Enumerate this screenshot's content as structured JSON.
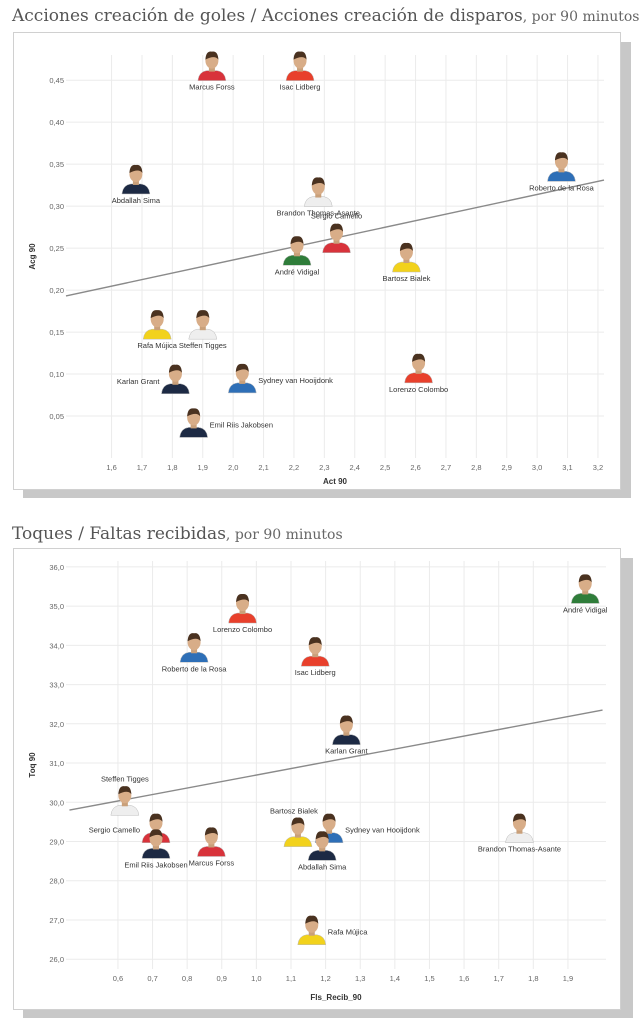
{
  "charts": [
    {
      "title": "Acciones creación de goles / Acciones creación de disparos",
      "subtitle": ", por 90 minutos"
    },
    {
      "title": "Toques / Faltas recibidas",
      "subtitle": ", por 90 minutos"
    }
  ],
  "chart_data": [
    {
      "type": "scatter",
      "xlabel": "Act 90",
      "ylabel": "Acg 90",
      "xlim": [
        1.45,
        3.22
      ],
      "ylim": [
        0.0,
        0.48
      ],
      "xticks": [
        "1,6",
        "1,7",
        "1,8",
        "1,9",
        "2,0",
        "2,1",
        "2,2",
        "2,3",
        "2,4",
        "2,5",
        "2,6",
        "2,7",
        "2,8",
        "2,9",
        "3,0",
        "3,1",
        "3,2"
      ],
      "yticks": [
        "0,05",
        "0,10",
        "0,15",
        "0,20",
        "0,25",
        "0,30",
        "0,35",
        "0,40",
        "0,45"
      ],
      "grid": true,
      "trendline": {
        "x": [
          1.45,
          3.22
        ],
        "y": [
          0.193,
          0.331
        ]
      },
      "points": [
        {
          "name": "Marcus Forss",
          "x": 1.93,
          "y": 0.465,
          "label_pos": "below",
          "jersey": "#d8333b"
        },
        {
          "name": "Isac Lidberg",
          "x": 2.22,
          "y": 0.465,
          "label_pos": "below",
          "jersey": "#e8402c"
        },
        {
          "name": "Abdallah Sima",
          "x": 1.68,
          "y": 0.33,
          "label_pos": "below",
          "jersey": "#1d2a44"
        },
        {
          "name": "Brandon Thomas-Asante",
          "x": 2.28,
          "y": 0.315,
          "label_pos": "below",
          "jersey": "#eeeeee"
        },
        {
          "name": "Roberto de la Rosa",
          "x": 3.08,
          "y": 0.345,
          "label_pos": "below",
          "jersey": "#2e6fb7"
        },
        {
          "name": "Sergio Camello",
          "x": 2.34,
          "y": 0.26,
          "label_pos": "above",
          "jersey": "#d8333b"
        },
        {
          "name": "André Vidigal",
          "x": 2.21,
          "y": 0.245,
          "label_pos": "below",
          "jersey": "#2f7d3a"
        },
        {
          "name": "Bartosz Bialek",
          "x": 2.57,
          "y": 0.237,
          "label_pos": "below",
          "jersey": "#f2d21c"
        },
        {
          "name": "Rafa Mújica",
          "x": 1.75,
          "y": 0.157,
          "label_pos": "below",
          "jersey": "#f2d21c"
        },
        {
          "name": "Steffen Tigges",
          "x": 1.9,
          "y": 0.157,
          "label_pos": "below",
          "jersey": "#eeeeee"
        },
        {
          "name": "Lorenzo Colombo",
          "x": 2.61,
          "y": 0.105,
          "label_pos": "below",
          "jersey": "#e8402c"
        },
        {
          "name": "Karlan Grant",
          "x": 1.81,
          "y": 0.092,
          "label_pos": "left",
          "jersey": "#1d2a44"
        },
        {
          "name": "Sydney van Hooijdonk",
          "x": 2.03,
          "y": 0.093,
          "label_pos": "right",
          "jersey": "#2e6fb7"
        },
        {
          "name": "Emil Riis Jakobsen",
          "x": 1.87,
          "y": 0.04,
          "label_pos": "right",
          "jersey": "#1d2a44"
        }
      ]
    },
    {
      "type": "scatter",
      "xlabel": "Fls_Recib_90",
      "ylabel": "Toq 90",
      "xlim": [
        0.45,
        2.01
      ],
      "ylim": [
        25.75,
        36.15
      ],
      "xticks": [
        "0,6",
        "0,7",
        "0,8",
        "0,9",
        "1,0",
        "1,1",
        "1,2",
        "1,3",
        "1,4",
        "1,5",
        "1,6",
        "1,7",
        "1,8",
        "1,9"
      ],
      "yticks": [
        "26,0",
        "27,0",
        "28,0",
        "29,0",
        "30,0",
        "31,0",
        "32,0",
        "33,0",
        "34,0",
        "35,0",
        "36,0"
      ],
      "grid": true,
      "trendline": {
        "x": [
          0.46,
          2.0
        ],
        "y": [
          29.8,
          32.35
        ]
      },
      "points": [
        {
          "name": "André Vidigal",
          "x": 1.95,
          "y": 35.4,
          "label_pos": "below",
          "jersey": "#2f7d3a"
        },
        {
          "name": "Lorenzo Colombo",
          "x": 0.96,
          "y": 34.9,
          "label_pos": "below",
          "jersey": "#e8402c"
        },
        {
          "name": "Roberto de la Rosa",
          "x": 0.82,
          "y": 33.9,
          "label_pos": "below",
          "jersey": "#2e6fb7"
        },
        {
          "name": "Isac Lidberg",
          "x": 1.17,
          "y": 33.8,
          "label_pos": "below",
          "jersey": "#e8402c"
        },
        {
          "name": "Karlan Grant",
          "x": 1.26,
          "y": 31.8,
          "label_pos": "below",
          "jersey": "#1d2a44"
        },
        {
          "name": "Steffen Tigges",
          "x": 0.62,
          "y": 30.0,
          "label_pos": "above",
          "jersey": "#eeeeee"
        },
        {
          "name": "Sergio Camello",
          "x": 0.71,
          "y": 29.3,
          "label_pos": "left",
          "jersey": "#d8333b"
        },
        {
          "name": "Emil Riis Jakobsen",
          "x": 0.71,
          "y": 28.9,
          "label_pos": "below",
          "jersey": "#1d2a44"
        },
        {
          "name": "Marcus Forss",
          "x": 0.87,
          "y": 28.95,
          "label_pos": "below",
          "jersey": "#d8333b"
        },
        {
          "name": "Bartosz Bialek",
          "x": 1.12,
          "y": 29.2,
          "label_pos": "aboveleft",
          "jersey": "#f2d21c"
        },
        {
          "name": "Sydney van Hooijdonk",
          "x": 1.21,
          "y": 29.3,
          "label_pos": "right",
          "jersey": "#2e6fb7"
        },
        {
          "name": "Abdallah Sima",
          "x": 1.19,
          "y": 28.85,
          "label_pos": "below",
          "jersey": "#1d2a44"
        },
        {
          "name": "Brandon Thomas-Asante",
          "x": 1.76,
          "y": 29.3,
          "label_pos": "below",
          "jersey": "#eeeeee"
        },
        {
          "name": "Rafa Mújica",
          "x": 1.16,
          "y": 26.7,
          "label_pos": "right",
          "jersey": "#f2d21c"
        }
      ]
    }
  ]
}
